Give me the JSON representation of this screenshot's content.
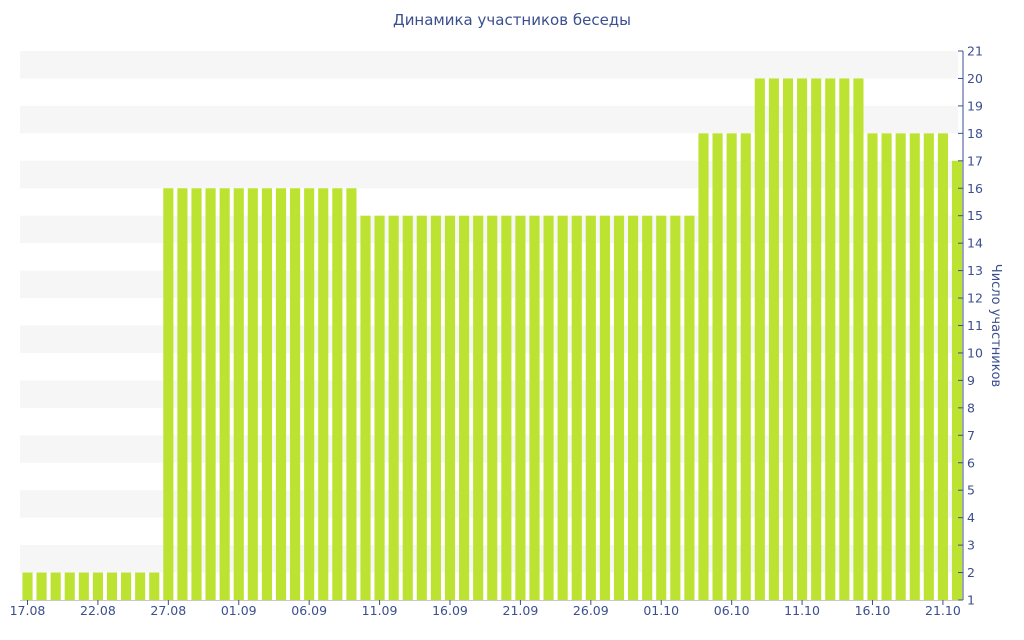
{
  "chart_data": {
    "type": "bar",
    "title": "Динамика участников беседы",
    "xlabel": "",
    "ylabel": "Число участников",
    "ylim": [
      1,
      21
    ],
    "y_ticks": [
      1,
      2,
      3,
      4,
      5,
      6,
      7,
      8,
      9,
      10,
      11,
      12,
      13,
      14,
      15,
      16,
      17,
      18,
      19,
      20,
      21
    ],
    "x_tick_labels": [
      "17.08",
      "22.08",
      "27.08",
      "01.09",
      "06.09",
      "11.09",
      "16.09",
      "21.09",
      "26.09",
      "01.10",
      "06.10",
      "11.10",
      "16.10",
      "21.10"
    ],
    "y_axis_position": "right",
    "grid": "alternating horizontal bands",
    "bar_color": "#bde332",
    "band_color": "#f6f6f6",
    "text_color": "#3b4f8f",
    "categories": [
      "17.08",
      "18.08",
      "19.08",
      "20.08",
      "21.08",
      "22.08",
      "23.08",
      "24.08",
      "25.08",
      "26.08",
      "27.08",
      "28.08",
      "29.08",
      "30.08",
      "31.08",
      "01.09",
      "02.09",
      "03.09",
      "04.09",
      "05.09",
      "06.09",
      "07.09",
      "08.09",
      "09.09",
      "10.09",
      "11.09",
      "12.09",
      "13.09",
      "14.09",
      "15.09",
      "16.09",
      "17.09",
      "18.09",
      "19.09",
      "20.09",
      "21.09",
      "22.09",
      "23.09",
      "24.09",
      "25.09",
      "26.09",
      "27.09",
      "28.09",
      "29.09",
      "30.09",
      "01.10",
      "02.10",
      "03.10",
      "04.10",
      "05.10",
      "06.10",
      "07.10",
      "08.10",
      "09.10",
      "10.10",
      "11.10",
      "12.10",
      "13.10",
      "14.10",
      "15.10",
      "16.10",
      "17.10",
      "18.10",
      "19.10",
      "20.10",
      "21.10",
      "22.10"
    ],
    "values": [
      2,
      2,
      2,
      2,
      2,
      2,
      2,
      2,
      2,
      2,
      16,
      16,
      16,
      16,
      16,
      16,
      16,
      16,
      16,
      16,
      16,
      16,
      16,
      16,
      15,
      15,
      15,
      15,
      15,
      15,
      15,
      15,
      15,
      15,
      15,
      15,
      15,
      15,
      15,
      15,
      15,
      15,
      15,
      15,
      15,
      15,
      15,
      15,
      18,
      18,
      18,
      18,
      20,
      20,
      20,
      20,
      20,
      20,
      20,
      20,
      18,
      18,
      18,
      18,
      18,
      18,
      17
    ]
  }
}
